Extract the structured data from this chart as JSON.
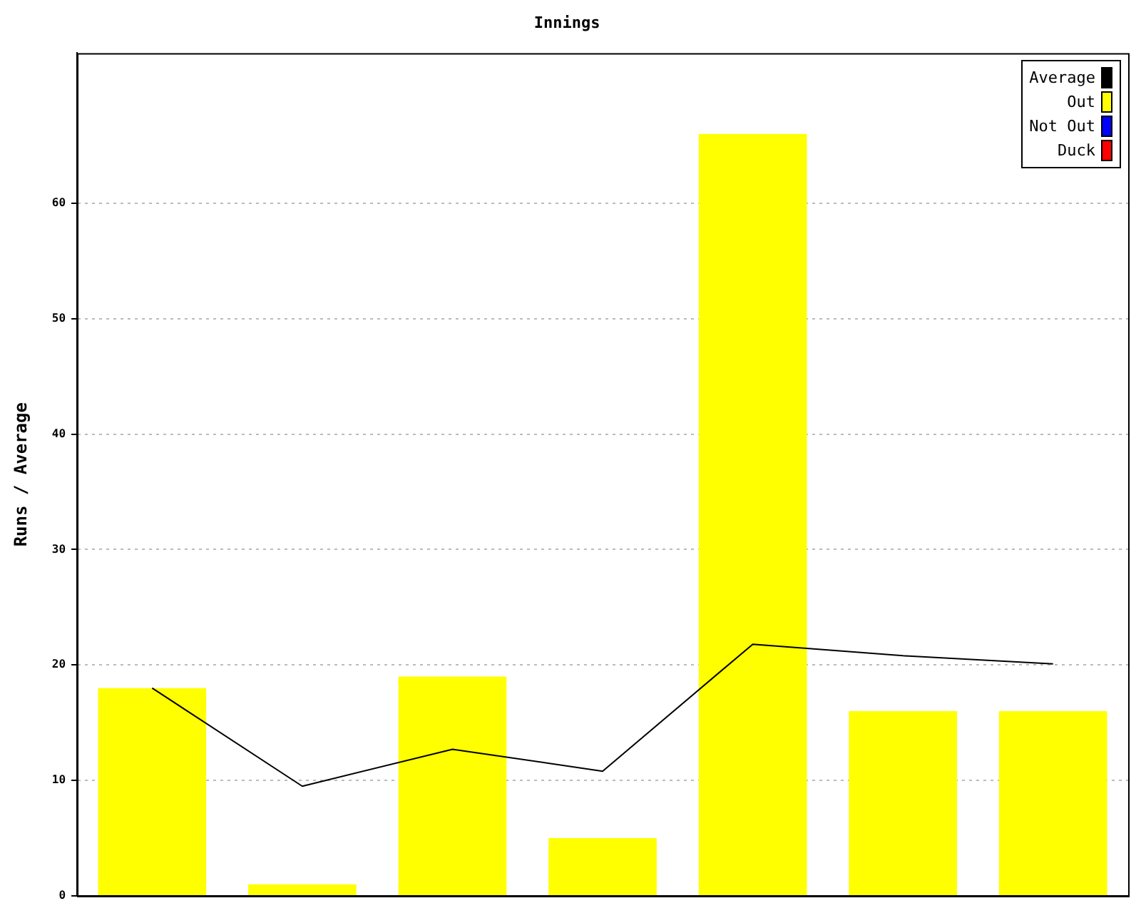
{
  "chart_data": {
    "type": "bar",
    "title": "Innings",
    "ylabel": "Runs / Average",
    "categories": [
      null,
      null,
      null,
      null,
      null,
      null,
      null
    ],
    "series": [
      {
        "name": "Average",
        "type": "line",
        "color": "#000000",
        "values": [
          18,
          9.5,
          12.7,
          10.8,
          21.8,
          20.8,
          20.1
        ]
      },
      {
        "name": "Out",
        "color": "#ffff00",
        "values": [
          18,
          1,
          19,
          5,
          66,
          16,
          16
        ]
      },
      {
        "name": "Not Out",
        "color": "#0000ff",
        "values": [
          null,
          null,
          null,
          null,
          null,
          null,
          null
        ]
      },
      {
        "name": "Duck",
        "color": "#ff0000",
        "values": [
          null,
          null,
          null,
          null,
          null,
          null,
          null
        ]
      }
    ],
    "ylim": [
      0,
      73
    ],
    "yticks": [
      0,
      10,
      20,
      30,
      40,
      50,
      60
    ],
    "grid": "y",
    "legend": "top right",
    "tick_labels": "y",
    "marker": "none",
    "line_style": "solid"
  }
}
